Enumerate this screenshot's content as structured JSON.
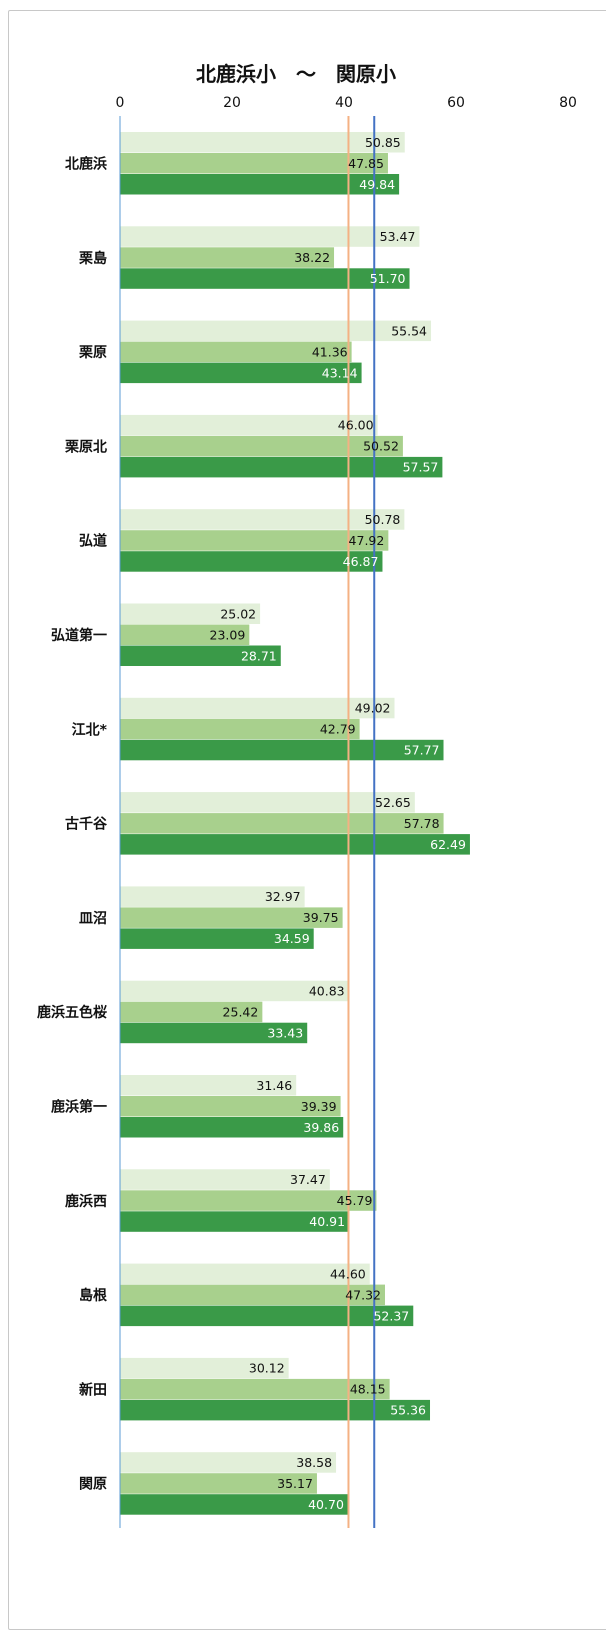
{
  "chart_data": {
    "type": "bar",
    "orientation": "horizontal",
    "title": "北鹿浜小　～　関原小",
    "xlim": [
      0,
      80
    ],
    "x_ticks": [
      "0",
      "20",
      "40",
      "60",
      "80"
    ],
    "grid": false,
    "legend": "none",
    "categories": [
      "北鹿浜",
      "栗島",
      "栗原",
      "栗原北",
      "弘道",
      "弘道第一",
      "江北*",
      "古千谷",
      "皿沼",
      "鹿浜五色桜",
      "鹿浜第一",
      "鹿浜西",
      "島根",
      "新田",
      "関原"
    ],
    "series": [
      {
        "color": "#e2efd9",
        "label_color": "#111111",
        "values": [
          50.85,
          53.47,
          55.54,
          46.0,
          50.78,
          25.02,
          49.02,
          52.65,
          32.97,
          40.83,
          31.46,
          37.47,
          44.6,
          30.12,
          38.58
        ],
        "labels": [
          "50.85",
          "53.47",
          "55.54",
          "46.00",
          "50.78",
          "25.02",
          "49.02",
          "52.65",
          "32.97",
          "40.83",
          "31.46",
          "37.47",
          "44.60",
          "30.12",
          "38.58"
        ]
      },
      {
        "color": "#a8d08d",
        "label_color": "#111111",
        "values": [
          47.85,
          38.22,
          41.36,
          50.52,
          47.92,
          23.09,
          42.79,
          57.78,
          39.75,
          25.42,
          39.39,
          45.79,
          47.32,
          48.15,
          35.17
        ],
        "labels": [
          "47.85",
          "38.22",
          "41.36",
          "50.52",
          "47.92",
          "23.09",
          "42.79",
          "57.78",
          "39.75",
          "25.42",
          "39.39",
          "45.79",
          "47.32",
          "48.15",
          "35.17"
        ]
      },
      {
        "color": "#3a9a48",
        "label_color": "#ffffff",
        "values": [
          49.84,
          51.7,
          43.14,
          57.57,
          46.87,
          28.71,
          57.77,
          62.49,
          34.59,
          33.43,
          39.86,
          40.91,
          52.37,
          55.36,
          40.7
        ],
        "labels": [
          "49.84",
          "51.70",
          "43.14",
          "57.57",
          "46.87",
          "28.71",
          "57.77",
          "62.49",
          "34.59",
          "33.43",
          "39.86",
          "40.91",
          "52.37",
          "55.36",
          "40.70"
        ]
      }
    ],
    "reference_lines": [
      {
        "value": 40.8,
        "color": "#f4b183"
      },
      {
        "value": 45.4,
        "color": "#4472c4"
      }
    ],
    "axis_line_color": "#5b9bd5"
  }
}
